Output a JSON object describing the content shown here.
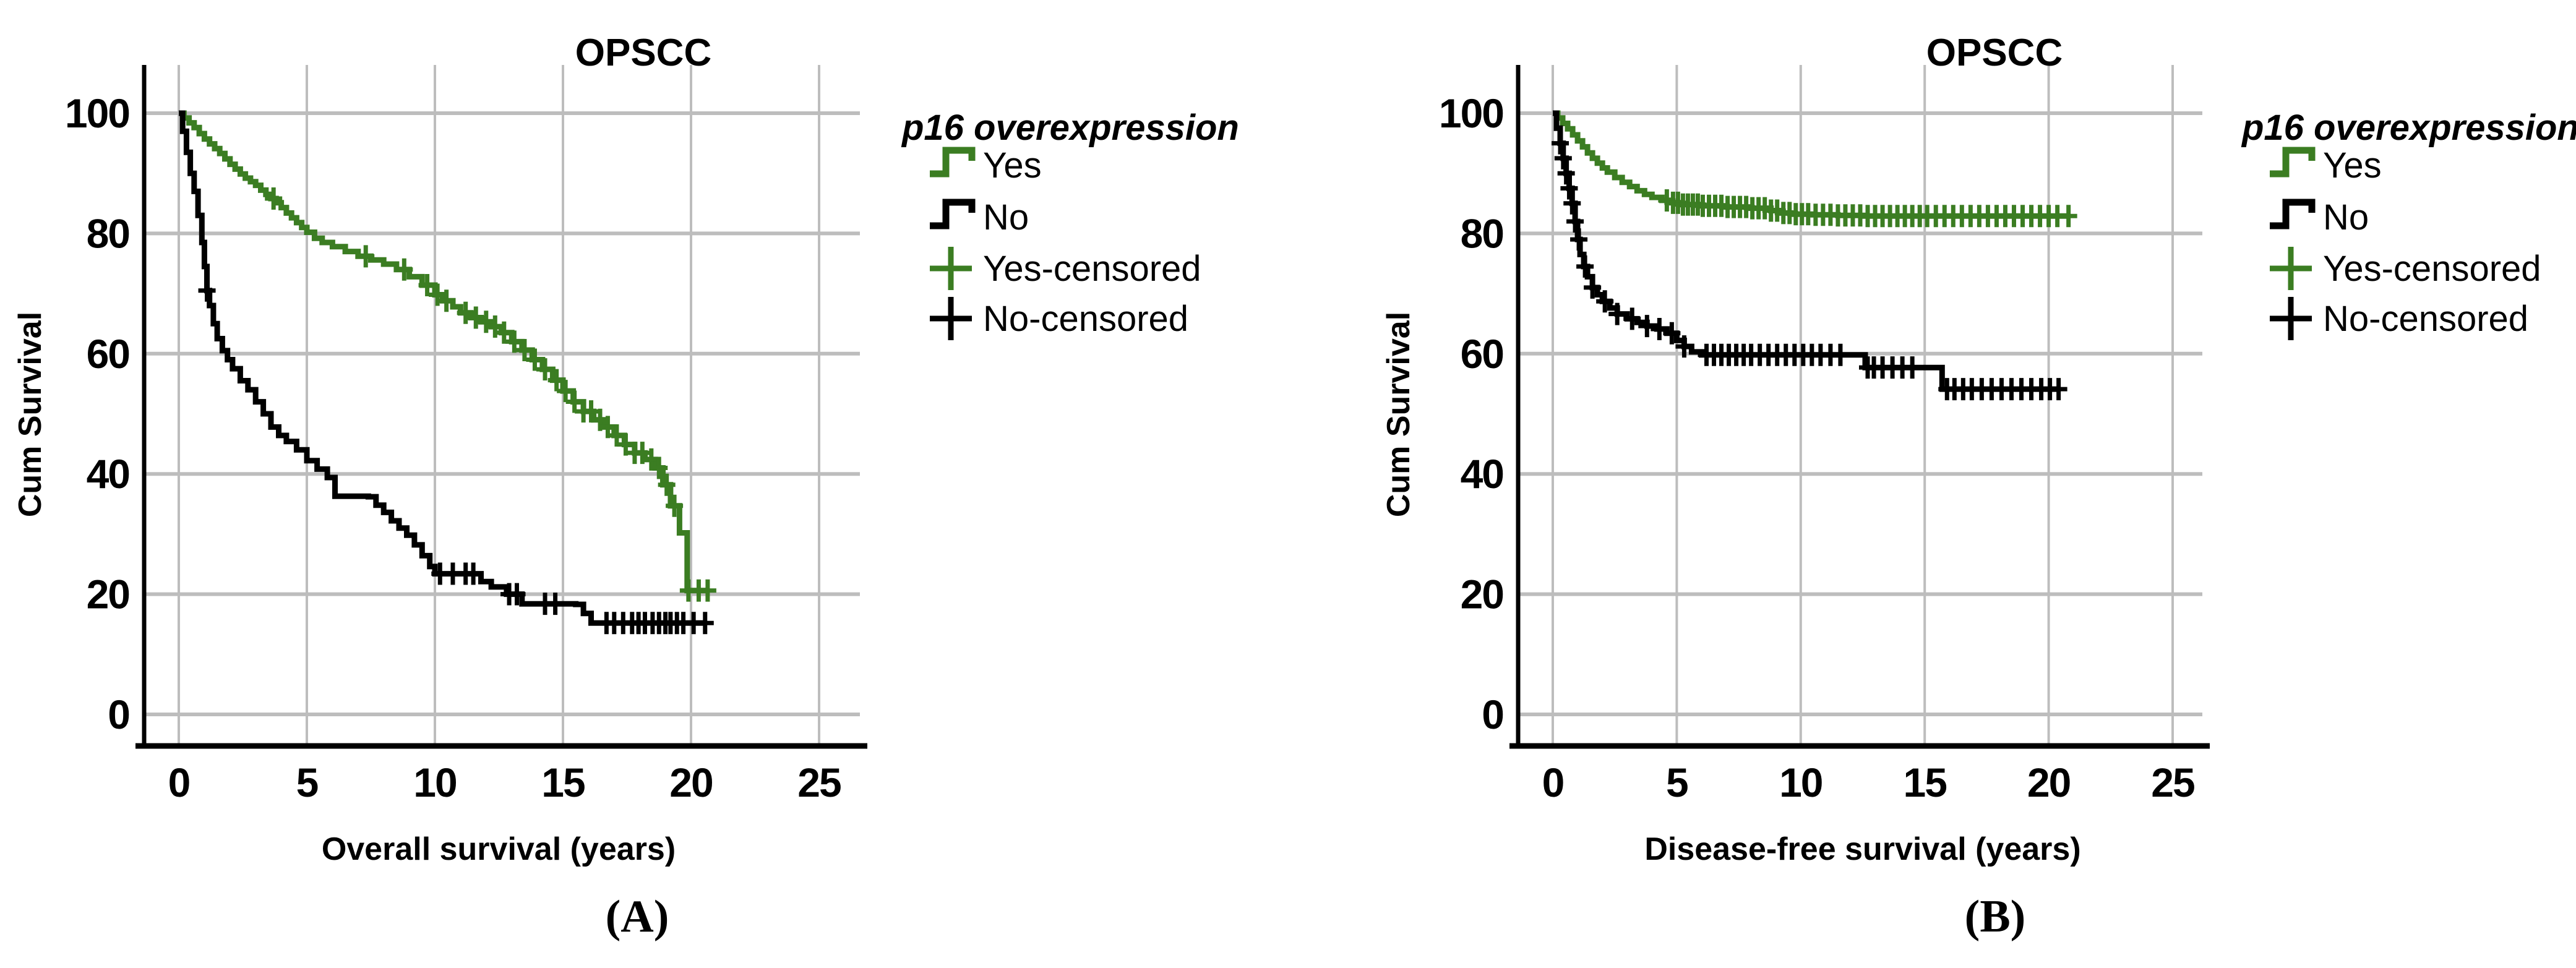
{
  "colors": {
    "yes": "#3B7D22",
    "no": "#000000",
    "grid": "#BDBDBD",
    "axis": "#000000",
    "background": "#FFFFFF"
  },
  "legend": {
    "title": "p16 overexpression",
    "items": [
      {
        "label": "Yes",
        "symbol": "step-line-icon",
        "color_key": "yes"
      },
      {
        "label": "No",
        "symbol": "step-line-icon",
        "color_key": "no"
      },
      {
        "label": "Yes-censored",
        "symbol": "plus-icon",
        "color_key": "yes"
      },
      {
        "label": "No-censored",
        "symbol": "plus-icon",
        "color_key": "no"
      }
    ]
  },
  "panels": [
    {
      "letter": "(A)",
      "title": "OPSCC",
      "xlabel": "Overall survival (years)",
      "ylabel": "Cum Survival"
    },
    {
      "letter": "(B)",
      "title": "OPSCC",
      "xlabel": "Disease-free survival (years)",
      "ylabel": "Cum Survival"
    }
  ],
  "chart_data": [
    {
      "type": "line",
      "subtype": "kaplan-meier-step",
      "title": "OPSCC",
      "xlabel": "Overall survival (years)",
      "ylabel": "Cum Survival",
      "xlim": [
        0,
        25
      ],
      "ylim": [
        0,
        100
      ],
      "x_ticks": [
        0,
        5,
        10,
        15,
        20,
        25
      ],
      "y_ticks": [
        100,
        80,
        60,
        40,
        20,
        0
      ],
      "grid": true,
      "legend_position": "right",
      "series": [
        {
          "name": "Yes",
          "color": "#3B7D22",
          "steps": [
            [
              0,
              100
            ],
            [
              0.2,
              99.2
            ],
            [
              0.4,
              98.4
            ],
            [
              0.6,
              97.6
            ],
            [
              0.8,
              96.6
            ],
            [
              1,
              95.7
            ],
            [
              1.2,
              94.9
            ],
            [
              1.4,
              94.1
            ],
            [
              1.6,
              93.3
            ],
            [
              1.8,
              92.4
            ],
            [
              2,
              91.5
            ],
            [
              2.2,
              90.7
            ],
            [
              2.4,
              89.9
            ],
            [
              2.6,
              89.2
            ],
            [
              2.8,
              88.6
            ],
            [
              3,
              88
            ],
            [
              3.2,
              87.2
            ],
            [
              3.4,
              86.5
            ],
            [
              3.6,
              85.8
            ],
            [
              3.8,
              85.1
            ],
            [
              4,
              84.3
            ],
            [
              4.2,
              83.4
            ],
            [
              4.4,
              82.6
            ],
            [
              4.6,
              81.8
            ],
            [
              4.8,
              81
            ],
            [
              5,
              80.2
            ],
            [
              5.3,
              79.2
            ],
            [
              5.6,
              78.5
            ],
            [
              6,
              77.8
            ],
            [
              6.5,
              77
            ],
            [
              7,
              76.2
            ],
            [
              7.5,
              75.6
            ],
            [
              8,
              74.9
            ],
            [
              8.5,
              74
            ],
            [
              9,
              72.8
            ],
            [
              9.5,
              71.4
            ],
            [
              10,
              69.8
            ],
            [
              10.3,
              68.8
            ],
            [
              10.7,
              67.8
            ],
            [
              11,
              66.8
            ],
            [
              11.4,
              66
            ],
            [
              11.8,
              65.3
            ],
            [
              12.2,
              64.5
            ],
            [
              12.6,
              63.5
            ],
            [
              13,
              62
            ],
            [
              13.4,
              60.6
            ],
            [
              13.8,
              59
            ],
            [
              14.2,
              57.4
            ],
            [
              14.6,
              55.6
            ],
            [
              15,
              53.8
            ],
            [
              15.4,
              52
            ],
            [
              15.8,
              50.4
            ],
            [
              16.2,
              49
            ],
            [
              16.6,
              47.8
            ],
            [
              17,
              46.4
            ],
            [
              17.4,
              44.9
            ],
            [
              17.8,
              43.5
            ],
            [
              18.2,
              42.4
            ],
            [
              18.6,
              41
            ],
            [
              18.9,
              38.2
            ],
            [
              19.2,
              34.7
            ],
            [
              19.55,
              30.2
            ],
            [
              19.85,
              20.6
            ],
            [
              20.7,
              20.6
            ]
          ],
          "censor_times": [
            3.7,
            7.3,
            8.8,
            9.7,
            10.1,
            10.45,
            11.2,
            11.6,
            12.0,
            12.35,
            12.7,
            13.1,
            13.5,
            13.9,
            14.3,
            14.75,
            15.1,
            15.45,
            15.8,
            16.1,
            16.45,
            16.75,
            17.1,
            17.45,
            17.8,
            18.1,
            18.45,
            18.75,
            19.05,
            19.35,
            19.9,
            20.3,
            20.65
          ]
        },
        {
          "name": "No",
          "color": "#000000",
          "steps": [
            [
              0,
              100
            ],
            [
              0.15,
              97
            ],
            [
              0.3,
              93.5
            ],
            [
              0.45,
              90
            ],
            [
              0.6,
              87
            ],
            [
              0.75,
              83
            ],
            [
              0.9,
              78.5
            ],
            [
              1,
              74.5
            ],
            [
              1.1,
              70.5
            ],
            [
              1.2,
              68
            ],
            [
              1.35,
              65
            ],
            [
              1.5,
              62.5
            ],
            [
              1.7,
              60.5
            ],
            [
              1.9,
              59
            ],
            [
              2.1,
              57.5
            ],
            [
              2.4,
              55.5
            ],
            [
              2.7,
              54
            ],
            [
              3,
              52
            ],
            [
              3.3,
              50
            ],
            [
              3.6,
              47.8
            ],
            [
              3.9,
              46.4
            ],
            [
              4.2,
              45.4
            ],
            [
              4.6,
              44
            ],
            [
              5,
              42.2
            ],
            [
              5.4,
              40.8
            ],
            [
              5.8,
              39.4
            ],
            [
              6.1,
              36.3
            ],
            [
              7.4,
              36.2
            ],
            [
              7.7,
              34.8
            ],
            [
              8,
              33.6
            ],
            [
              8.3,
              32.2
            ],
            [
              8.6,
              31
            ],
            [
              8.9,
              29.8
            ],
            [
              9.2,
              28.2
            ],
            [
              9.5,
              26.4
            ],
            [
              9.8,
              24.6
            ],
            [
              10,
              23.4
            ],
            [
              11.8,
              22.1
            ],
            [
              12.2,
              21.2
            ],
            [
              12.8,
              20
            ],
            [
              13.4,
              18.4
            ],
            [
              15.5,
              18.3
            ],
            [
              15.8,
              16.8
            ],
            [
              16.1,
              15.2
            ],
            [
              20.6,
              15.2
            ]
          ],
          "censor_times": [
            1.1,
            10.2,
            10.7,
            11.2,
            11.5,
            12.9,
            13.2,
            14.3,
            14.7,
            16.7,
            17.0,
            17.35,
            17.7,
            17.95,
            18.2,
            18.5,
            18.75,
            19.0,
            19.2,
            19.45,
            19.7,
            20.1,
            20.55
          ]
        }
      ]
    },
    {
      "type": "line",
      "subtype": "kaplan-meier-step",
      "title": "OPSCC",
      "xlabel": "Disease-free survival (years)",
      "ylabel": "Cum Survival",
      "xlim": [
        0,
        25
      ],
      "ylim": [
        0,
        100
      ],
      "x_ticks": [
        0,
        5,
        10,
        15,
        20,
        25
      ],
      "y_ticks": [
        100,
        80,
        60,
        40,
        20,
        0
      ],
      "grid": true,
      "legend_position": "right",
      "series": [
        {
          "name": "Yes",
          "color": "#3B7D22",
          "steps": [
            [
              0,
              100
            ],
            [
              0.2,
              99.2
            ],
            [
              0.4,
              98.3
            ],
            [
              0.6,
              97.4
            ],
            [
              0.8,
              96.4
            ],
            [
              1,
              95.4
            ],
            [
              1.2,
              94.4
            ],
            [
              1.4,
              93.4
            ],
            [
              1.6,
              92.5
            ],
            [
              1.8,
              91.7
            ],
            [
              2,
              90.9
            ],
            [
              2.2,
              90.2
            ],
            [
              2.5,
              89.3
            ],
            [
              2.8,
              88.5
            ],
            [
              3.1,
              87.8
            ],
            [
              3.4,
              87.1
            ],
            [
              3.7,
              86.5
            ],
            [
              4,
              86
            ],
            [
              4.4,
              85.5
            ],
            [
              4.8,
              85.1
            ],
            [
              5.2,
              84.8
            ],
            [
              6,
              84.6
            ],
            [
              7,
              84.4
            ],
            [
              8,
              84.2
            ],
            [
              8.8,
              83.8
            ],
            [
              9.2,
              83.4
            ],
            [
              9.6,
              83.2
            ],
            [
              10.5,
              83.1
            ],
            [
              11.5,
              83
            ],
            [
              12.5,
              82.9
            ],
            [
              20.8,
              82.9
            ]
          ],
          "censor_times": [
            4.6,
            4.85,
            5.05,
            5.25,
            5.45,
            5.65,
            5.85,
            6.05,
            6.3,
            6.55,
            6.8,
            7.05,
            7.3,
            7.55,
            7.8,
            8.05,
            8.3,
            8.55,
            8.8,
            9.05,
            9.3,
            9.55,
            9.8,
            10.05,
            10.3,
            10.6,
            10.9,
            11.2,
            11.5,
            11.8,
            12.1,
            12.4,
            12.7,
            13.0,
            13.3,
            13.6,
            13.9,
            14.2,
            14.5,
            14.8,
            15.1,
            15.45,
            15.8,
            16.15,
            16.5,
            16.85,
            17.2,
            17.55,
            17.9,
            18.25,
            18.6,
            18.95,
            19.3,
            19.65,
            20.0,
            20.35,
            20.8
          ]
        },
        {
          "name": "No",
          "color": "#000000",
          "steps": [
            [
              0,
              100
            ],
            [
              0.15,
              97.5
            ],
            [
              0.3,
              95
            ],
            [
              0.42,
              92.5
            ],
            [
              0.54,
              90
            ],
            [
              0.66,
              87.5
            ],
            [
              0.78,
              85
            ],
            [
              0.9,
              82
            ],
            [
              1,
              79
            ],
            [
              1.1,
              76.5
            ],
            [
              1.25,
              74.5
            ],
            [
              1.4,
              72.8
            ],
            [
              1.6,
              71
            ],
            [
              1.8,
              69.8
            ],
            [
              2,
              68.7
            ],
            [
              2.3,
              67.6
            ],
            [
              2.6,
              66.6
            ],
            [
              3,
              65.8
            ],
            [
              3.4,
              65.2
            ],
            [
              3.8,
              64.6
            ],
            [
              4.2,
              64.1
            ],
            [
              4.6,
              63.4
            ],
            [
              5,
              62.2
            ],
            [
              5.3,
              61.2
            ],
            [
              5.6,
              60.3
            ],
            [
              6,
              59.8
            ],
            [
              12.3,
              59.8
            ],
            [
              12.6,
              57.7
            ],
            [
              15.4,
              57.7
            ],
            [
              15.7,
              54.1
            ],
            [
              20.4,
              54.1
            ]
          ],
          "censor_times": [
            0.3,
            0.42,
            0.54,
            0.66,
            0.78,
            0.9,
            1.05,
            1.3,
            1.6,
            2.1,
            2.6,
            3.2,
            3.8,
            4.3,
            4.8,
            5.3,
            6.2,
            6.5,
            6.8,
            7.1,
            7.4,
            7.7,
            8.0,
            8.35,
            8.7,
            9.05,
            9.4,
            9.75,
            10.1,
            10.45,
            10.8,
            11.2,
            11.6,
            12.7,
            12.95,
            13.3,
            13.7,
            14.1,
            14.5,
            15.9,
            16.2,
            16.55,
            16.9,
            17.3,
            17.7,
            18.1,
            18.5,
            18.9,
            19.3,
            19.7,
            20.05,
            20.4
          ]
        }
      ]
    }
  ]
}
